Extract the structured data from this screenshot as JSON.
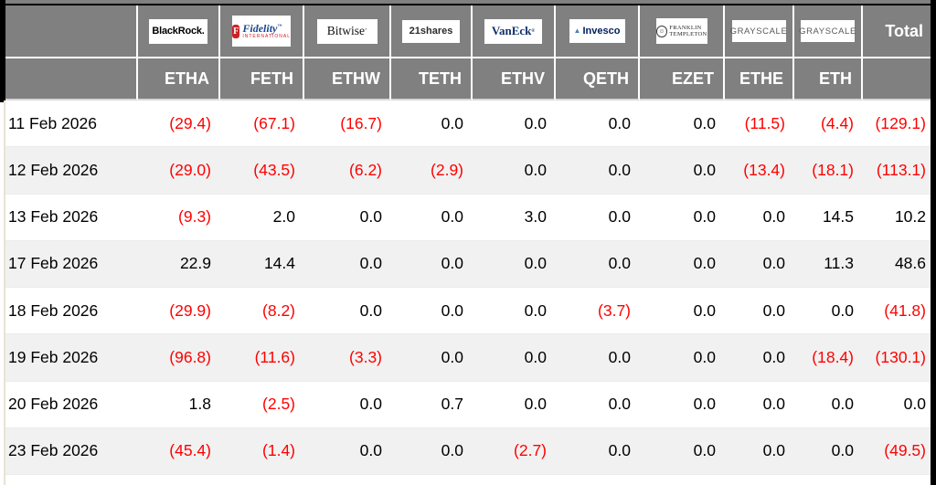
{
  "colors": {
    "header_bg": "#808080",
    "header_text": "#ffffff",
    "negative_text": "#ff0000",
    "positive_text": "#000000",
    "row_alt_bg": "#f1f1f1",
    "fidelity_red": "#cd2026",
    "fidelity_navy": "#17468f",
    "vaneck_navy": "#10316b",
    "invesco_navy": "#001e5f",
    "invesco_mark_blue": "#4a7ebb",
    "grayscale_gray": "#58595b"
  },
  "header": {
    "total_label": "Total",
    "columns": [
      {
        "issuer": "BlackRock",
        "ticker": "ETHA",
        "logo": "blackrock"
      },
      {
        "issuer": "Fidelity",
        "ticker": "FETH",
        "logo": "fidelity"
      },
      {
        "issuer": "Bitwise",
        "ticker": "ETHW",
        "logo": "bitwise"
      },
      {
        "issuer": "21shares",
        "ticker": "TETH",
        "logo": "t21shares"
      },
      {
        "issuer": "VanEck",
        "ticker": "ETHV",
        "logo": "vaneck"
      },
      {
        "issuer": "Invesco",
        "ticker": "QETH",
        "logo": "invesco"
      },
      {
        "issuer": "Franklin Templeton",
        "ticker": "EZET",
        "logo": "franklin"
      },
      {
        "issuer": "Grayscale",
        "ticker": "ETHE",
        "logo": "grayscale"
      },
      {
        "issuer": "Grayscale",
        "ticker": "ETH",
        "logo": "grayscale"
      }
    ],
    "logos": {
      "blackrock": {
        "text": "BlackRock."
      },
      "fidelity": {
        "initial": "F",
        "text": "Fidelity",
        "mark": "™",
        "sub": "INTERNATIONAL"
      },
      "bitwise": {
        "text": "Bitwise",
        "mark": "’"
      },
      "t21shares": {
        "text": "21shares"
      },
      "vaneck": {
        "text": "VanEck",
        "mark": "®"
      },
      "invesco": {
        "text": "Invesco"
      },
      "franklin": {
        "line1": "FRANKLIN",
        "line2": "TEMPLETON"
      },
      "grayscale": {
        "text": "GRAYSCALE"
      }
    }
  },
  "rows": [
    {
      "date": "11 Feb 2026",
      "values": [
        "(29.4)",
        "(67.1)",
        "(16.7)",
        "0.0",
        "0.0",
        "0.0",
        "0.0",
        "(11.5)",
        "(4.4)",
        "(129.1)"
      ]
    },
    {
      "date": "12 Feb 2026",
      "values": [
        "(29.0)",
        "(43.5)",
        "(6.2)",
        "(2.9)",
        "0.0",
        "0.0",
        "0.0",
        "(13.4)",
        "(18.1)",
        "(113.1)"
      ]
    },
    {
      "date": "13 Feb 2026",
      "values": [
        "(9.3)",
        "2.0",
        "0.0",
        "0.0",
        "3.0",
        "0.0",
        "0.0",
        "0.0",
        "14.5",
        "10.2"
      ]
    },
    {
      "date": "17 Feb 2026",
      "values": [
        "22.9",
        "14.4",
        "0.0",
        "0.0",
        "0.0",
        "0.0",
        "0.0",
        "0.0",
        "11.3",
        "48.6"
      ]
    },
    {
      "date": "18 Feb 2026",
      "values": [
        "(29.9)",
        "(8.2)",
        "0.0",
        "0.0",
        "0.0",
        "(3.7)",
        "0.0",
        "0.0",
        "0.0",
        "(41.8)"
      ]
    },
    {
      "date": "19 Feb 2026",
      "values": [
        "(96.8)",
        "(11.6)",
        "(3.3)",
        "0.0",
        "0.0",
        "0.0",
        "0.0",
        "0.0",
        "(18.4)",
        "(130.1)"
      ]
    },
    {
      "date": "20 Feb 2026",
      "values": [
        "1.8",
        "(2.5)",
        "0.0",
        "0.7",
        "0.0",
        "0.0",
        "0.0",
        "0.0",
        "0.0",
        "0.0"
      ]
    },
    {
      "date": "23 Feb 2026",
      "values": [
        "(45.4)",
        "(1.4)",
        "0.0",
        "0.0",
        "(2.7)",
        "0.0",
        "0.0",
        "0.0",
        "0.0",
        "(49.5)"
      ]
    }
  ]
}
